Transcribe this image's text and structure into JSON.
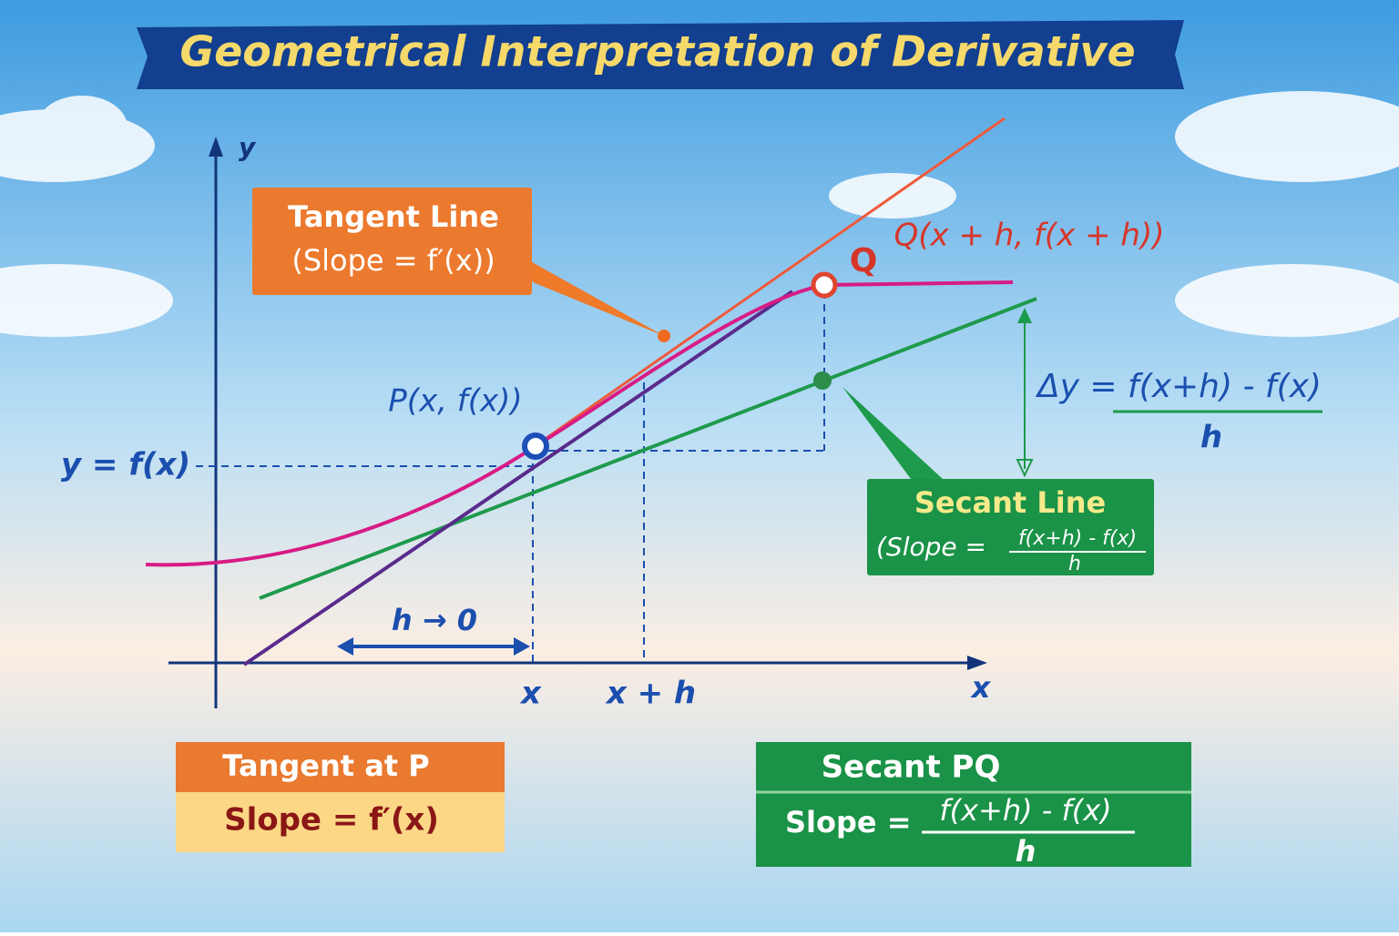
{
  "header": {
    "title": "Geometrical Interpretation of Derivative"
  },
  "axes": {
    "y_label": "y",
    "x_label": "x",
    "x_ticks": [
      "x",
      "x + h"
    ]
  },
  "points": {
    "p_label": "P(x, f(x))",
    "q_letter": "Q",
    "q_label": "Q(x + h, f(x + h))",
    "curve_label": "y = f(x)"
  },
  "annotations": {
    "h_limit": "h → 0",
    "delta_numerator": "Δy = f(x+h) - f(x)",
    "delta_denominator": "h"
  },
  "callouts": {
    "tangent": {
      "title": "Tangent Line",
      "slope": "(Slope = f′(x))"
    },
    "secant": {
      "title": "Secant Line",
      "slope_prefix": "(Slope =",
      "numerator": "f(x+h) - f(x)",
      "denominator": "h"
    }
  },
  "summary": {
    "tangent": {
      "title": "Tangent at P",
      "slope": "Slope = f′(x)"
    },
    "secant": {
      "title": "Secant PQ",
      "slope_prefix": "Slope =",
      "numerator": "f(x+h) - f(x)",
      "denominator": "h"
    }
  }
}
